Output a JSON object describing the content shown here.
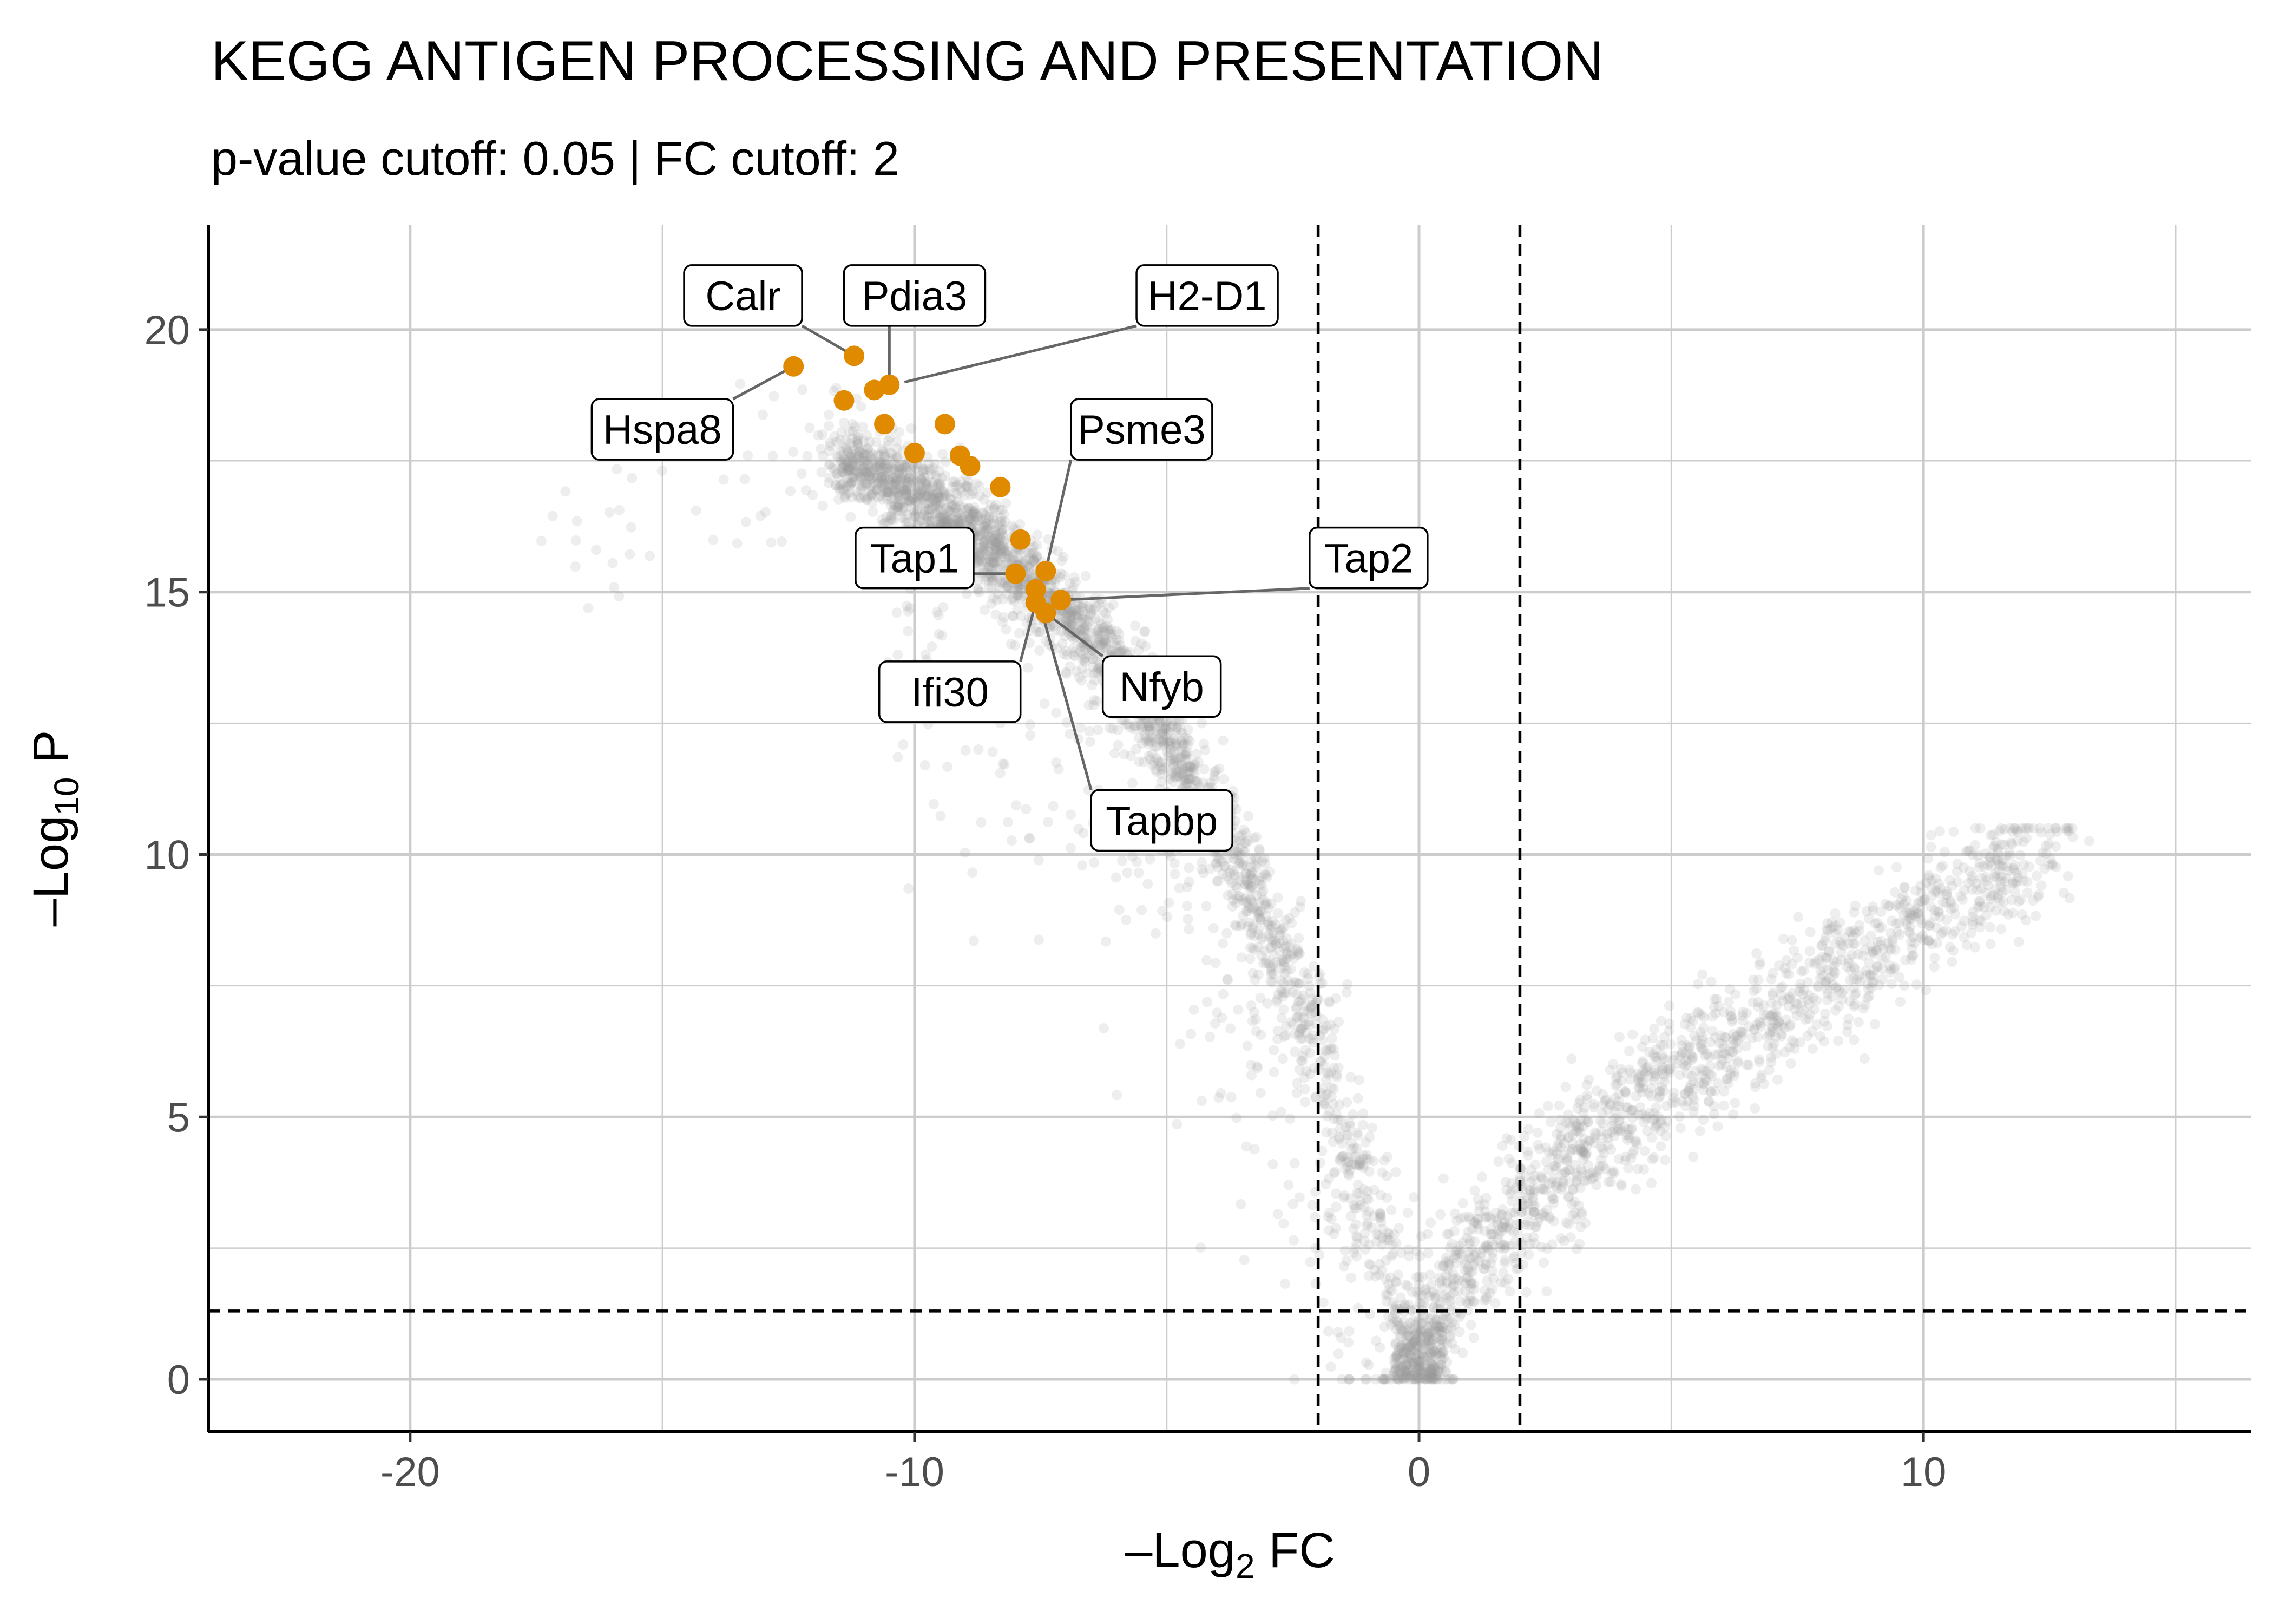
{
  "chart_data": {
    "type": "scatter",
    "title": "KEGG ANTIGEN PROCESSING AND PRESENTATION",
    "subtitle": "p-value cutoff: 0.05 | FC cutoff: 2",
    "xlabel": {
      "prefix": "–Log",
      "sub": "2",
      "suffix": " FC"
    },
    "ylabel": {
      "prefix": "–Log",
      "sub": "10",
      "suffix": " P"
    },
    "xlim": [
      -24,
      16.5
    ],
    "ylim": [
      -1,
      22
    ],
    "x_ticks": [
      -20,
      -10,
      0,
      10
    ],
    "x_tick_labels": [
      "-20",
      "-10",
      "0",
      "10"
    ],
    "y_ticks": [
      0,
      5,
      10,
      15,
      20
    ],
    "y_tick_labels": [
      "0",
      "5",
      "10",
      "15",
      "20"
    ],
    "grid": true,
    "cutoffs": {
      "fc_lines": [
        -2,
        2
      ],
      "p_line": 1.301
    },
    "colors": {
      "background_points": "#999999",
      "highlight": "#e08a00",
      "grid": "#cccccc"
    },
    "highlighted_points": [
      {
        "x": -12.4,
        "y": 19.3
      },
      {
        "x": -11.2,
        "y": 19.5
      },
      {
        "x": -11.4,
        "y": 18.65
      },
      {
        "x": -10.8,
        "y": 18.85
      },
      {
        "x": -10.5,
        "y": 18.95
      },
      {
        "x": -10.6,
        "y": 18.2
      },
      {
        "x": -9.4,
        "y": 18.2
      },
      {
        "x": -10.0,
        "y": 17.65
      },
      {
        "x": -9.1,
        "y": 17.6
      },
      {
        "x": -8.9,
        "y": 17.4
      },
      {
        "x": -8.3,
        "y": 17.0
      },
      {
        "x": -7.9,
        "y": 16.0
      },
      {
        "x": -7.4,
        "y": 15.4
      },
      {
        "x": -8.0,
        "y": 15.35
      },
      {
        "x": -7.6,
        "y": 15.05
      },
      {
        "x": -7.1,
        "y": 14.85
      },
      {
        "x": -7.6,
        "y": 14.8
      },
      {
        "x": -7.4,
        "y": 14.6
      }
    ],
    "labels": [
      {
        "text": "Calr",
        "x": -13.4,
        "y": 20.65,
        "px": -11.2,
        "py": 19.5
      },
      {
        "text": "Pdia3",
        "x": -10.0,
        "y": 20.65,
        "px": -10.5,
        "py": 18.95
      },
      {
        "text": "H2-D1",
        "x": -4.2,
        "y": 20.65,
        "px": -10.2,
        "py": 19.0
      },
      {
        "text": "Hspa8",
        "x": -15.0,
        "y": 18.1,
        "px": -12.4,
        "py": 19.3
      },
      {
        "text": "Psme3",
        "x": -5.5,
        "y": 18.1,
        "px": -7.4,
        "py": 15.4
      },
      {
        "text": "Tap1",
        "x": -10.0,
        "y": 15.65,
        "px": -8.0,
        "py": 15.35
      },
      {
        "text": "Tap2",
        "x": -1.0,
        "y": 15.65,
        "px": -7.1,
        "py": 14.85
      },
      {
        "text": "Ifi30",
        "x": -9.3,
        "y": 13.1,
        "px": -7.6,
        "py": 14.8
      },
      {
        "text": "Nfyb",
        "x": -5.1,
        "y": 13.2,
        "px": -7.4,
        "py": 14.6
      },
      {
        "text": "Tapbp",
        "x": -5.1,
        "y": 10.65,
        "px": -7.6,
        "py": 15.05
      }
    ]
  }
}
